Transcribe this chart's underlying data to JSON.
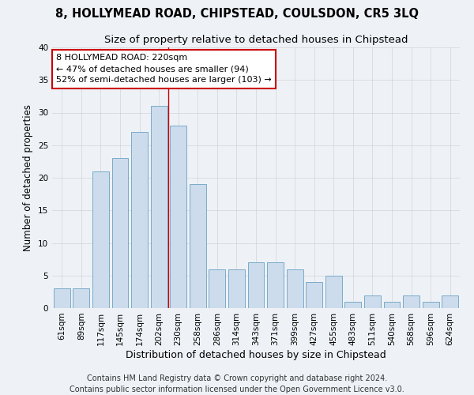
{
  "title": "8, HOLLYMEAD ROAD, CHIPSTEAD, COULSDON, CR5 3LQ",
  "subtitle": "Size of property relative to detached houses in Chipstead",
  "xlabel": "Distribution of detached houses by size in Chipstead",
  "ylabel": "Number of detached properties",
  "categories": [
    "61sqm",
    "89sqm",
    "117sqm",
    "145sqm",
    "174sqm",
    "202sqm",
    "230sqm",
    "258sqm",
    "286sqm",
    "314sqm",
    "343sqm",
    "371sqm",
    "399sqm",
    "427sqm",
    "455sqm",
    "483sqm",
    "511sqm",
    "540sqm",
    "568sqm",
    "596sqm",
    "624sqm"
  ],
  "values": [
    3,
    3,
    21,
    23,
    27,
    31,
    28,
    19,
    6,
    6,
    7,
    7,
    6,
    4,
    5,
    1,
    2,
    1,
    2,
    1,
    2
  ],
  "bar_color": "#ccdcec",
  "bar_edge_color": "#7aaac8",
  "grid_color": "#cccccc",
  "annotation_line1": "8 HOLLYMEAD ROAD: 220sqm",
  "annotation_line2": "← 47% of detached houses are smaller (94)",
  "annotation_line3": "52% of semi-detached houses are larger (103) →",
  "annotation_box_color": "#ffffff",
  "annotation_box_edge_color": "#cc0000",
  "vline_color": "#cc0000",
  "footer_line1": "Contains HM Land Registry data © Crown copyright and database right 2024.",
  "footer_line2": "Contains public sector information licensed under the Open Government Licence v3.0.",
  "background_color": "#eef2f7",
  "plot_bg_color": "#eef2f7",
  "ylim": [
    0,
    40
  ],
  "yticks": [
    0,
    5,
    10,
    15,
    20,
    25,
    30,
    35,
    40
  ],
  "title_fontsize": 10.5,
  "subtitle_fontsize": 9.5,
  "xlabel_fontsize": 9,
  "ylabel_fontsize": 8.5,
  "tick_fontsize": 7.5,
  "annotation_fontsize": 8,
  "footer_fontsize": 7
}
